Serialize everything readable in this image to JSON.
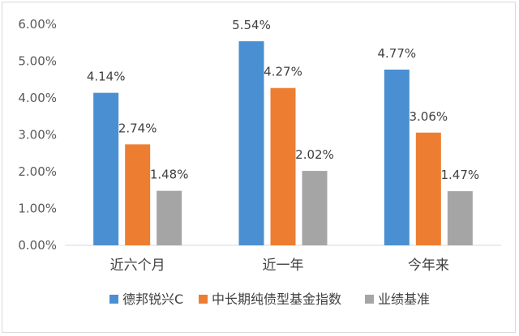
{
  "chart_data": {
    "type": "bar",
    "categories": [
      "近六个月",
      "近一年",
      "今年来"
    ],
    "series": [
      {
        "name": "德邦锐兴C",
        "color": "#4A8FD1",
        "values": [
          4.14,
          5.54,
          4.77
        ],
        "labels": [
          "4.14%",
          "5.54%",
          "4.77%"
        ]
      },
      {
        "name": "中长期纯债型基金指数",
        "color": "#ED7D31",
        "values": [
          2.74,
          4.27,
          3.06
        ],
        "labels": [
          "2.74%",
          "4.27%",
          "3.06%"
        ]
      },
      {
        "name": "业绩基准",
        "color": "#A5A5A5",
        "values": [
          1.48,
          2.02,
          1.47
        ],
        "labels": [
          "1.48%",
          "2.02%",
          "1.47%"
        ]
      }
    ],
    "ylim": [
      0,
      6
    ],
    "yticks": [
      0,
      1,
      2,
      3,
      4,
      5,
      6
    ],
    "ytick_labels": [
      "0.00%",
      "1.00%",
      "2.00%",
      "3.00%",
      "4.00%",
      "5.00%",
      "6.00%"
    ],
    "grid": false,
    "legend_position": "bottom"
  }
}
